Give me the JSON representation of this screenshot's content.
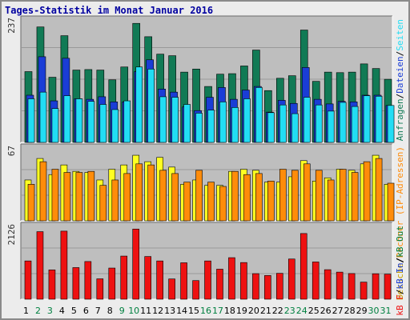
{
  "title": "Tages-Statistik im Monat Januar 2016",
  "colors": {
    "background": "#ececec",
    "plot_bg": "#bebebe",
    "hits": "#117a55",
    "files": "#1a3dd6",
    "pages": "#22ddf4",
    "visits": "#ffff22",
    "sites": "#ff8c0a",
    "kbytes": "#ee1111",
    "weekday_label": "#000000",
    "weekend_label": "#008040"
  },
  "legend": [
    {
      "label": "Anfragen",
      "color": "#117a55"
    },
    {
      "label": "Dateien",
      "color": "#1a3dd6"
    },
    {
      "label": "Seiten",
      "color": "#22ddf4"
    },
    {
      "label": "Besuche",
      "color": "#c8a000"
    },
    {
      "label": "Rechner (IP-Adressen)",
      "color": "#ff8c0a"
    },
    {
      "label": "kB F",
      "color": "#ee1111"
    },
    {
      "label": "kB In",
      "color": "#1a3dd6"
    },
    {
      "label": "kB Out",
      "color": "#008040"
    }
  ],
  "legend_separator": "/",
  "chart_data": {
    "type": "bar",
    "categories": [
      "1",
      "2",
      "3",
      "4",
      "5",
      "6",
      "7",
      "8",
      "9",
      "10",
      "11",
      "12",
      "13",
      "14",
      "15",
      "16",
      "17",
      "18",
      "19",
      "20",
      "21",
      "22",
      "23",
      "24",
      "25",
      "26",
      "27",
      "28",
      "29",
      "30",
      "31"
    ],
    "weekend_days": [
      "2",
      "3",
      "9",
      "10",
      "16",
      "17",
      "23",
      "24",
      "30",
      "31"
    ],
    "panels": [
      {
        "ymax_label": "237",
        "ylim": [
          0,
          237
        ],
        "series": [
          {
            "name": "Anfragen",
            "values": [
              138,
              225,
              127,
              208,
              141,
              142,
              141,
              122,
              147,
              232,
              206,
              172,
              169,
              137,
              143,
              109,
              133,
              134,
              149,
              180,
              101,
              125,
              130,
              219,
              119,
              137,
              136,
              137,
              153,
              144,
              123
            ]
          },
          {
            "name": "Dateien",
            "values": [
              92,
              167,
              81,
              164,
              85,
              84,
              89,
              79,
              79,
              138,
              161,
              104,
              98,
              69,
              62,
              88,
              107,
              84,
              102,
              109,
              59,
              82,
              76,
              146,
              84,
              75,
              80,
              79,
              92,
              92,
              72
            ]
          },
          {
            "name": "Seiten",
            "values": [
              85,
              98,
              66,
              91,
              85,
              80,
              74,
              64,
              81,
              147,
              143,
              89,
              88,
              74,
              57,
              63,
              79,
              68,
              85,
              107,
              58,
              73,
              56,
              88,
              73,
              61,
              78,
              70,
              91,
              90,
              72
            ]
          }
        ]
      },
      {
        "ymax_label": "67",
        "ylim": [
          0,
          67
        ],
        "series": [
          {
            "name": "Besuche",
            "values": [
              38,
              58,
              43,
              52,
              46,
              45,
              38,
              48,
              52,
              61,
              55,
              59,
              50,
              34,
              38,
              33,
              33,
              46,
              48,
              47,
              36,
              36,
              41,
              56,
              37,
              40,
              48,
              47,
              53,
              61,
              34
            ]
          },
          {
            "name": "Rechner (IP-Adressen)",
            "values": [
              34,
              55,
              48,
              45,
              45,
              46,
              33,
              38,
              44,
              53,
              52,
              47,
              44,
              36,
              47,
              36,
              32,
              46,
              43,
              44,
              37,
              48,
              47,
              53,
              47,
              38,
              48,
              45,
              55,
              58,
              35
            ]
          }
        ]
      },
      {
        "ymax_label": "2126",
        "ylim": [
          0,
          2126
        ],
        "series": [
          {
            "name": "kB F",
            "values": [
              1130,
              1995,
              865,
              2010,
              934,
              1113,
              602,
              920,
              1274,
              2072,
              1261,
              1130,
              598,
              1076,
              550,
              1130,
              887,
              1227,
              1083,
              755,
              700,
              765,
              1187,
              1940,
              1100,
              872,
              800,
              758,
              505,
              752,
              740
            ]
          }
        ]
      }
    ],
    "xlabel": "",
    "ylabel": "",
    "grid": true
  }
}
